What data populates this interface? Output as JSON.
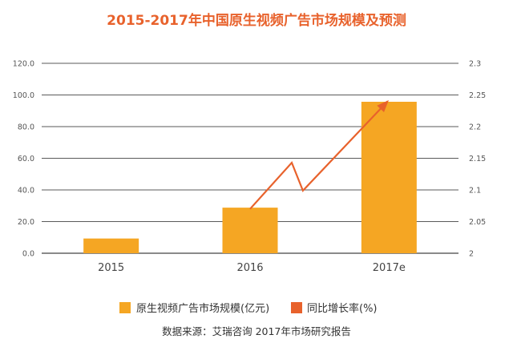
{
  "chart_data": {
    "type": "bar",
    "title": "2015-2017年中国原生视频广告市场规模及预测",
    "categories": [
      "2015",
      "2016",
      "2017e"
    ],
    "series": [
      {
        "name": "原生视频广告市场规模(亿元)",
        "type": "bar",
        "axis": "left",
        "color": "#f5a623",
        "values": [
          9.3,
          28.8,
          95.7
        ]
      },
      {
        "name": "同比增长率(%)",
        "type": "line",
        "axis": "right",
        "color": "#e8622c",
        "values": [
          null,
          2.07,
          2.24
        ],
        "arrow_end": true
      }
    ],
    "y_left": {
      "min": 0,
      "max": 120,
      "ticks": [
        "0.0",
        "20.0",
        "40.0",
        "60.0",
        "80.0",
        "100.0",
        "120.0"
      ]
    },
    "y_right": {
      "min": 2,
      "max": 2.3,
      "ticks": [
        "2",
        "2.05",
        "2.1",
        "2.15",
        "2.2",
        "2.25",
        "2.3"
      ]
    },
    "grid": true,
    "legend_position": "bottom",
    "source": "数据来源：艾瑞咨询 2017年市场研究报告"
  }
}
